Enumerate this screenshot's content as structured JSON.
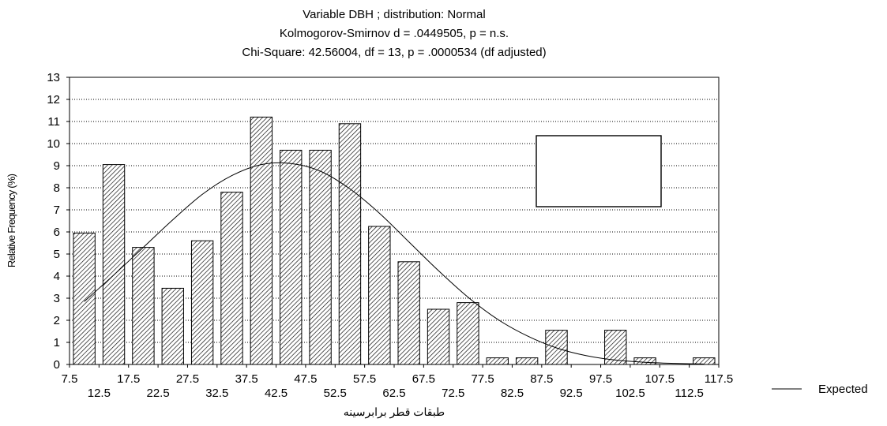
{
  "chart_data": {
    "type": "bar",
    "title": [
      "Variable DBH ; distribution: Normal",
      "Kolmogorov-Smirnov d = .0449505, p = n.s.",
      "Chi-Square: 42.56004, df = 13, p = .0000534 (df adjusted)"
    ],
    "xlabel": "طبقات قطر برابرسینه",
    "ylabel": "Relative Frequency (%)",
    "ylim": [
      0,
      13
    ],
    "y_ticks": [
      "0",
      "1",
      "2",
      "3",
      "4",
      "5",
      "6",
      "7",
      "8",
      "9",
      "10",
      "11",
      "12",
      "13"
    ],
    "x_ticks_top": [
      "7.5",
      "17.5",
      "27.5",
      "37.5",
      "47.5",
      "57.5",
      "67.5",
      "77.5",
      "87.5",
      "97.5",
      "107.5",
      "117.5"
    ],
    "x_ticks_bottom": [
      "12.5",
      "22.5",
      "32.5",
      "42.5",
      "52.5",
      "62.5",
      "72.5",
      "82.5",
      "92.5",
      "102.5",
      "112.5"
    ],
    "xlim": [
      7.5,
      117.5
    ],
    "bin_width": 5,
    "bins": [
      10,
      15,
      20,
      25,
      30,
      35,
      40,
      45,
      50,
      55,
      60,
      65,
      70,
      75,
      80,
      85,
      90,
      95,
      100,
      105,
      110,
      115
    ],
    "values": [
      5.95,
      9.05,
      5.3,
      3.45,
      5.6,
      7.8,
      11.2,
      9.7,
      9.7,
      10.9,
      6.25,
      4.65,
      2.5,
      2.8,
      0.3,
      0.3,
      1.55,
      0.0,
      1.55,
      0.3,
      0.0,
      0.3
    ],
    "expected_curve": {
      "name": "Expected",
      "x": [
        10,
        15,
        20,
        25,
        30,
        35,
        40,
        45,
        50,
        55,
        60,
        65,
        70,
        75,
        80,
        85,
        90,
        95,
        100,
        105,
        110,
        115
      ],
      "y": [
        2.85,
        4.05,
        5.3,
        6.55,
        7.7,
        8.55,
        9.05,
        9.1,
        8.75,
        7.95,
        6.85,
        5.55,
        4.25,
        3.05,
        2.05,
        1.3,
        0.75,
        0.4,
        0.2,
        0.1,
        0.05,
        0.02
      ]
    },
    "grid": true,
    "legend": {
      "position": "bottom-right",
      "entries": [
        "Expected"
      ]
    },
    "colors": {
      "bar_stroke": "#000000",
      "hatch": "#000000",
      "grid": "#000000",
      "curve": "#000000"
    }
  }
}
